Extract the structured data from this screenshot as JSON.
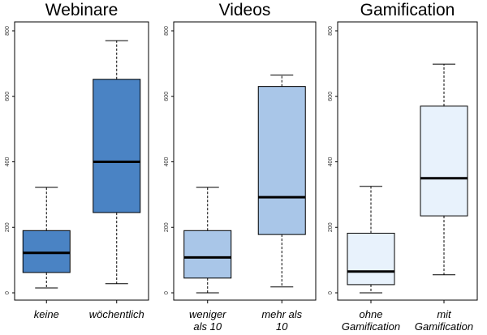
{
  "chart_data": [
    {
      "type": "boxplot",
      "title": "Webinare",
      "ylim": [
        0,
        800
      ],
      "yticks": [
        "0",
        "200",
        "400",
        "600",
        "800"
      ],
      "fill": "#4a83c4",
      "categories": [
        [
          "keine"
        ],
        [
          "wöchentlich"
        ]
      ],
      "boxes": [
        {
          "whisker_low": 15,
          "q1": 62,
          "median": 122,
          "q3": 190,
          "whisker_high": 322
        },
        {
          "whisker_low": 28,
          "q1": 245,
          "median": 400,
          "q3": 652,
          "whisker_high": 770
        }
      ]
    },
    {
      "type": "boxplot",
      "title": "Videos",
      "ylim": [
        0,
        800
      ],
      "yticks": [
        "0",
        "200",
        "400",
        "600",
        "800"
      ],
      "fill": "#a9c6e8",
      "categories": [
        [
          "weniger",
          "als 10"
        ],
        [
          "mehr als",
          "10"
        ]
      ],
      "boxes": [
        {
          "whisker_low": 0,
          "q1": 45,
          "median": 108,
          "q3": 190,
          "whisker_high": 322
        },
        {
          "whisker_low": 18,
          "q1": 178,
          "median": 292,
          "q3": 630,
          "whisker_high": 665
        }
      ]
    },
    {
      "type": "boxplot",
      "title": "Gamification",
      "ylim": [
        0,
        800
      ],
      "yticks": [
        "0",
        "200",
        "400",
        "600",
        "800"
      ],
      "fill": "#e8f2fc",
      "categories": [
        [
          "ohne",
          "Gamification"
        ],
        [
          "mit",
          "Gamification"
        ]
      ],
      "boxes": [
        {
          "whisker_low": 0,
          "q1": 25,
          "median": 65,
          "q3": 182,
          "whisker_high": 325
        },
        {
          "whisker_low": 55,
          "q1": 235,
          "median": 350,
          "q3": 570,
          "whisker_high": 698
        }
      ]
    }
  ]
}
